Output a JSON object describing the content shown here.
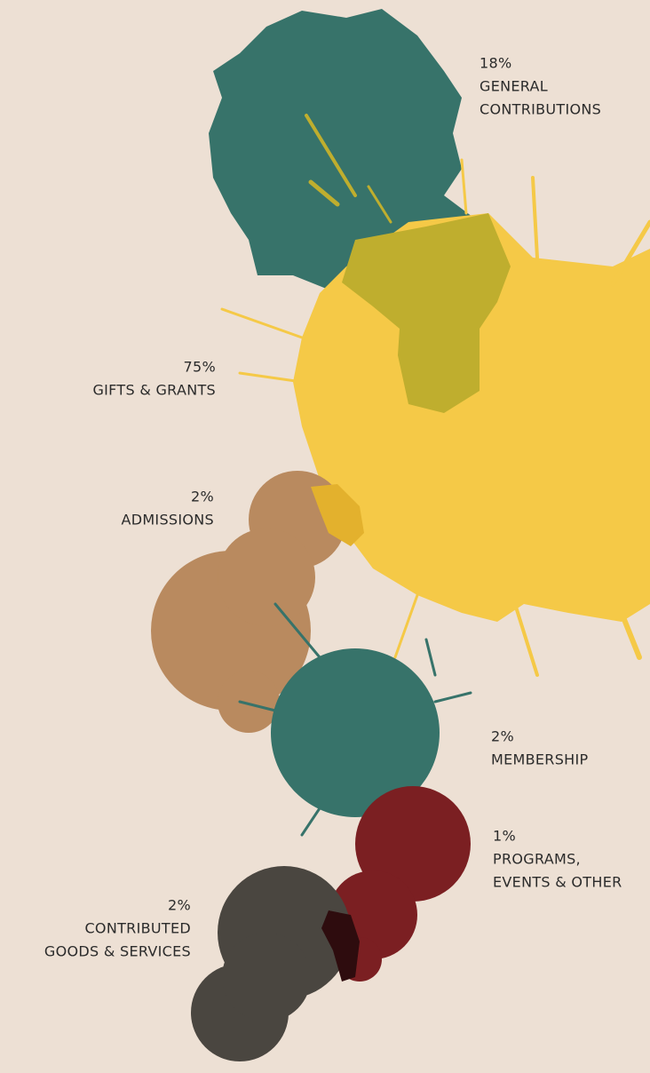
{
  "items": [
    {
      "percent": "18%",
      "lines": [
        "GENERAL",
        "CONTRIBUTIONS"
      ]
    },
    {
      "percent": "75%",
      "lines": [
        "GIFTS & GRANTS"
      ]
    },
    {
      "percent": "2%",
      "lines": [
        "ADMISSIONS"
      ]
    },
    {
      "percent": "2%",
      "lines": [
        "MEMBERSHIP"
      ]
    },
    {
      "percent": "1%",
      "lines": [
        "PROGRAMS,",
        "EVENTS & OTHER"
      ]
    },
    {
      "percent": "2%",
      "lines": [
        "CONTRIBUTED",
        "GOODS & SERVICES"
      ]
    }
  ]
}
